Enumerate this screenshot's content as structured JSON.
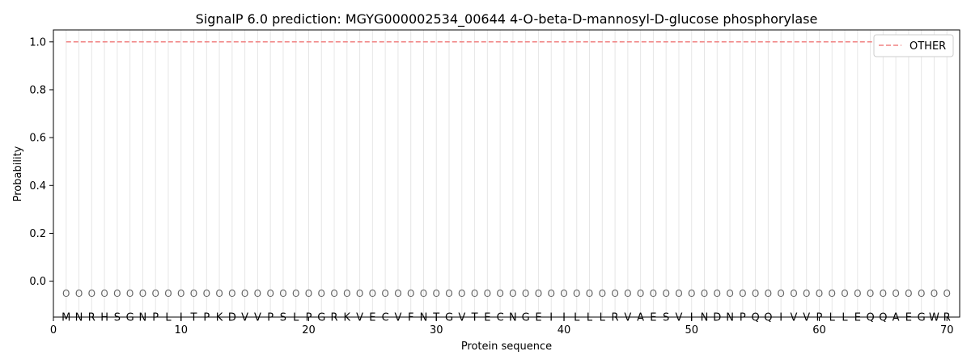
{
  "chart_data": {
    "type": "line",
    "title": "SignalP 6.0 prediction: MGYG000002534_00644 4-O-beta-D-mannosyl-D-glucose phosphorylase",
    "xlabel": "Protein sequence",
    "ylabel": "Probability",
    "xlim": [
      0,
      71
    ],
    "ylim": [
      -0.15,
      1.05
    ],
    "x_ticks": [
      0,
      10,
      20,
      30,
      40,
      50,
      60,
      70
    ],
    "y_ticks": [
      0.0,
      0.2,
      0.4,
      0.6,
      0.8,
      1.0
    ],
    "y_tick_labels": [
      "0.0",
      "0.2",
      "0.4",
      "0.6",
      "0.8",
      "1.0"
    ],
    "grid": "vertical lines at each residue",
    "legend_position": "top-right",
    "sequence": [
      "M",
      "N",
      "R",
      "H",
      "S",
      "G",
      "N",
      "P",
      "L",
      "I",
      "T",
      "P",
      "K",
      "D",
      "V",
      "V",
      "P",
      "S",
      "L",
      "P",
      "G",
      "R",
      "K",
      "V",
      "E",
      "C",
      "V",
      "F",
      "N",
      "T",
      "G",
      "V",
      "T",
      "E",
      "C",
      "N",
      "G",
      "E",
      "I",
      "I",
      "L",
      "L",
      "L",
      "R",
      "V",
      "A",
      "E",
      "S",
      "V",
      "I",
      "N",
      "D",
      "N",
      "P",
      "Q",
      "Q",
      "I",
      "V",
      "V",
      "P",
      "L",
      "L",
      "E",
      "Q",
      "Q",
      "A",
      "E",
      "G",
      "W",
      "R"
    ],
    "marker_label": "O",
    "marker_y": -0.05,
    "series": [
      {
        "name": "OTHER",
        "color": "#f08080",
        "style": "dashed",
        "x": [
          1,
          70
        ],
        "values": [
          1.0,
          1.0
        ]
      }
    ]
  }
}
